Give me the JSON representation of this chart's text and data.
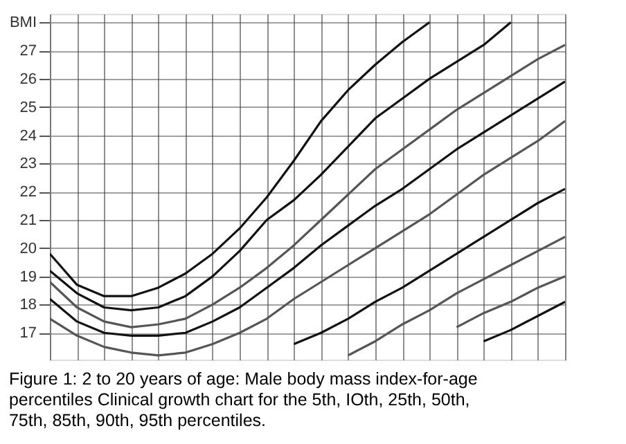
{
  "chart_data": {
    "type": "line",
    "annotations": [
      "Figure 1: 2 to 20 years of age: Male body mass index-for-age percentiles Clinical growth chart for the 5th, IOth, 25th, 50th, 75th, 85th, 90th, 95th percentiles."
    ],
    "categories": [
      null,
      null,
      null,
      null,
      null,
      null,
      null,
      null,
      null,
      null,
      null,
      null,
      null,
      null,
      null,
      null,
      null,
      null,
      null,
      null
    ],
    "series": [
      {
        "color": "#111111",
        "values": [
          19.8,
          18.7,
          18.3,
          18.3,
          18.6,
          19.1,
          19.8,
          20.7,
          21.8,
          23.1,
          24.5,
          25.6,
          26.5,
          27.3,
          28.0,
          null,
          null,
          null,
          null,
          null
        ]
      },
      {
        "color": "#111111",
        "values": [
          19.2,
          18.4,
          17.9,
          17.8,
          17.9,
          18.3,
          19.0,
          19.9,
          21.0,
          21.7,
          22.6,
          23.6,
          24.6,
          25.3,
          26.0,
          26.6,
          27.2,
          28.0,
          null,
          null
        ]
      },
      {
        "color": "#555555",
        "values": [
          18.8,
          17.9,
          17.4,
          17.2,
          17.3,
          17.5,
          18.0,
          18.6,
          19.3,
          20.1,
          21.0,
          21.9,
          22.8,
          23.5,
          24.2,
          24.9,
          25.5,
          26.1,
          26.7,
          27.2
        ]
      },
      {
        "color": "#111111",
        "values": [
          18.2,
          17.4,
          17.0,
          16.9,
          16.9,
          17.0,
          17.4,
          17.9,
          18.6,
          19.3,
          20.1,
          20.8,
          21.5,
          22.1,
          22.8,
          23.5,
          24.1,
          24.7,
          25.3,
          25.9
        ]
      },
      {
        "color": "#555555",
        "values": [
          17.5,
          16.9,
          16.5,
          16.3,
          16.2,
          16.3,
          16.6,
          17.0,
          17.5,
          18.2,
          18.8,
          19.4,
          20.0,
          20.6,
          21.2,
          21.9,
          22.6,
          23.2,
          23.8,
          24.5
        ]
      },
      {
        "color": "#111111",
        "values": [
          null,
          null,
          null,
          null,
          null,
          null,
          null,
          null,
          null,
          16.6,
          17.0,
          17.5,
          18.1,
          18.6,
          19.2,
          19.8,
          20.4,
          21.0,
          21.6,
          22.1
        ]
      },
      {
        "color": "#555555",
        "values": [
          null,
          null,
          null,
          null,
          null,
          null,
          null,
          null,
          null,
          null,
          null,
          16.2,
          16.7,
          17.3,
          17.8,
          18.4,
          18.9,
          19.4,
          19.9,
          20.4
        ]
      },
      {
        "color": "#555555",
        "values": [
          null,
          null,
          null,
          null,
          null,
          null,
          null,
          null,
          null,
          null,
          null,
          null,
          null,
          null,
          null,
          17.2,
          17.7,
          18.1,
          18.6,
          19.0
        ]
      },
      {
        "color": "#111111",
        "values": [
          null,
          null,
          null,
          null,
          null,
          null,
          null,
          null,
          null,
          null,
          null,
          null,
          null,
          null,
          null,
          null,
          16.7,
          17.1,
          17.6,
          18.1
        ]
      }
    ],
    "ylim": [
      16.05,
      28.3
    ],
    "yticks": [
      17,
      18,
      19,
      20,
      21,
      22,
      23,
      24,
      25,
      26,
      27,
      {
        "value": 28,
        "label": "BMI"
      }
    ],
    "grid": true,
    "legend": false,
    "marker": "none",
    "line_style": "solid",
    "tick_labels": "y"
  }
}
